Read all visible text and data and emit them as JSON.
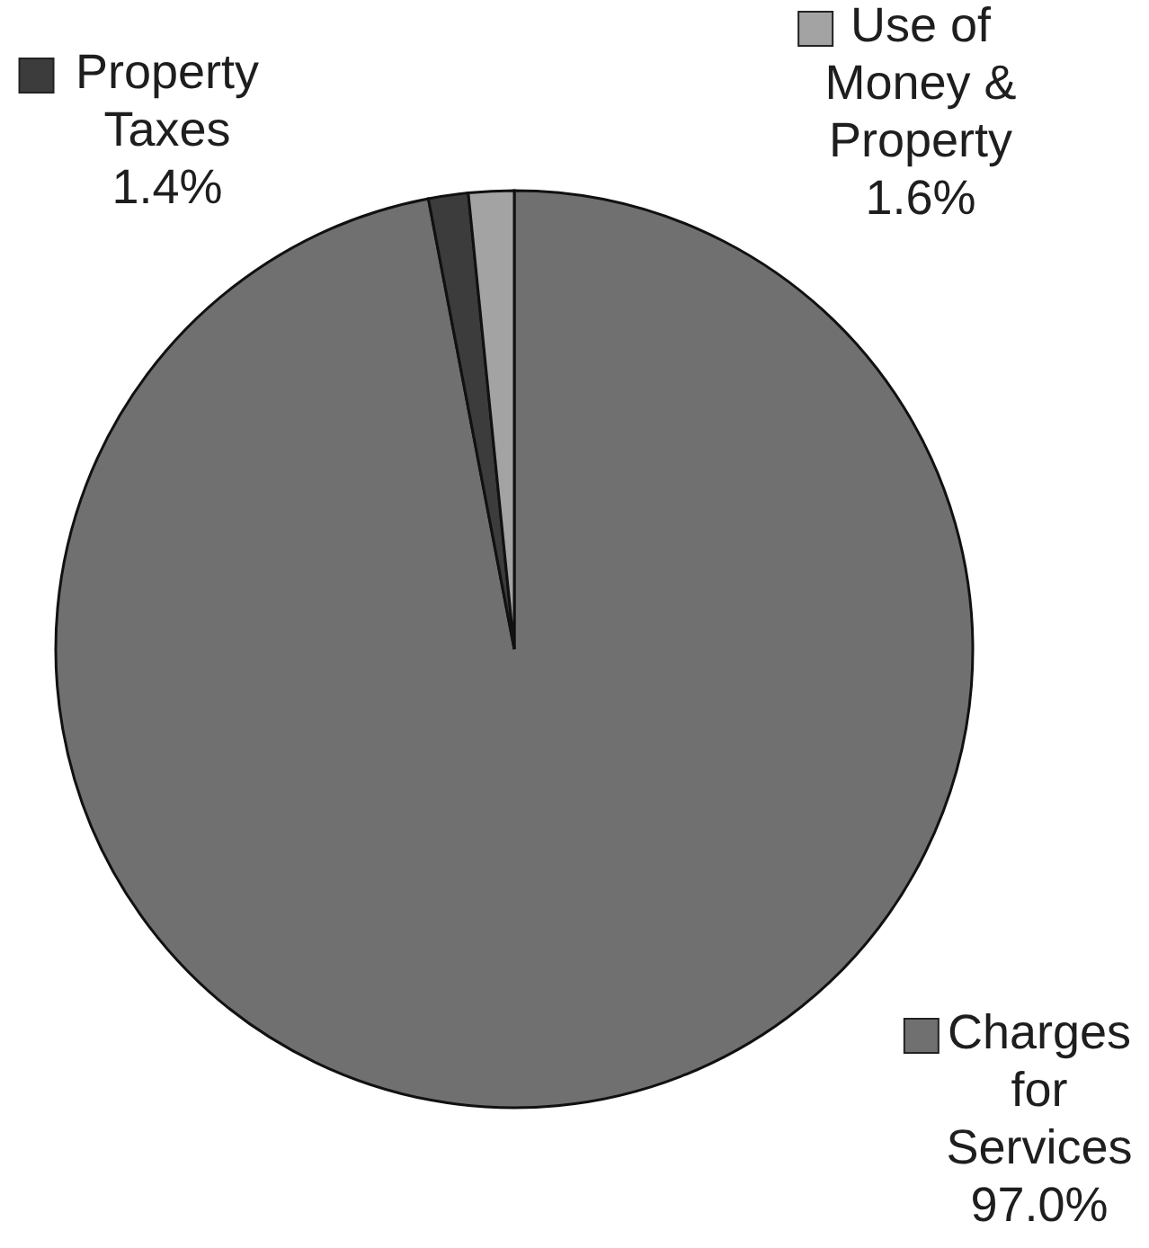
{
  "chart_data": {
    "type": "pie",
    "categories": [
      "Charges for Services",
      "Property Taxes",
      "Use of Money & Property"
    ],
    "values": [
      97.0,
      1.4,
      1.6
    ],
    "colors": [
      "#707070",
      "#3c3c3c",
      "#a3a3a3"
    ],
    "value_labels": [
      "97.0%",
      "1.4%",
      "1.6%"
    ],
    "legend": "right"
  }
}
